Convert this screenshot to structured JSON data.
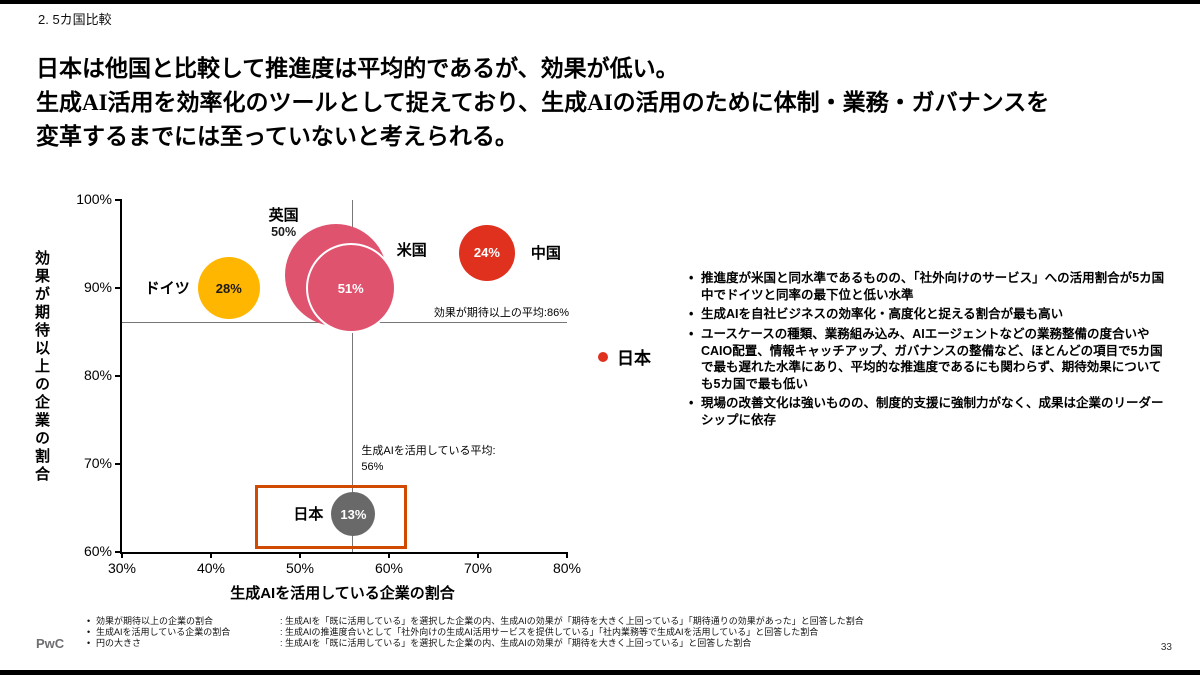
{
  "page": {
    "section_label": "2. 5カ国比較",
    "title_lines": [
      "日本は他国と比較して推進度は平均的であるが、効果が低い。",
      "生成AI活用を効率化のツールとして捉えており、生成AIの活用のために体制・業務・ガバナンスを",
      "変革するまでには至っていないと考えられる。"
    ],
    "footer_logo": "PwC",
    "page_number": "33"
  },
  "chart_data": {
    "type": "scatter",
    "xlabel": "生成AIを活用している企業の割合",
    "ylabel": "効果が期待以上の企業の割合",
    "xlim": [
      30,
      80
    ],
    "ylim": [
      60,
      100
    ],
    "x_ticks": [
      30,
      40,
      50,
      60,
      70,
      80
    ],
    "y_ticks": [
      60,
      70,
      80,
      90,
      100
    ],
    "tick_suffix": "%",
    "grid": false,
    "highlight_color": "#D04A02",
    "avg_lines": {
      "x": {
        "value": 56,
        "label": "生成AIを活用している平均:\n56%"
      },
      "y": {
        "value": 86,
        "label": "効果が期待以上の平均:86%"
      }
    },
    "legend": {
      "label": "日本",
      "color": "#E0301E",
      "position": "right"
    },
    "bubbles": [
      {
        "id": "germany",
        "name": "ドイツ",
        "x": 42,
        "y": 90,
        "pct": "28%",
        "r": 31,
        "color": "#FFB600",
        "pct_color": "#1a1a1a",
        "label_pos": "left"
      },
      {
        "id": "uk",
        "name": "英国",
        "x": 54,
        "y": 91.5,
        "pct": "50%",
        "r": 51,
        "color": "#E0536E",
        "pct_color": "#1a1a1a",
        "label_pos": "above",
        "pct_outside": true
      },
      {
        "id": "us",
        "name": "米国",
        "x": 55.7,
        "y": 90,
        "pct": "51%",
        "r": 45,
        "color": "#E0536E",
        "pct_color": "#ffffff",
        "label_pos": "topright",
        "outline": true
      },
      {
        "id": "china",
        "name": "中国",
        "x": 71,
        "y": 94,
        "pct": "24%",
        "r": 28,
        "color": "#E0301E",
        "pct_color": "#ffffff",
        "label_pos": "right"
      },
      {
        "id": "japan",
        "name": "日本",
        "x": 56,
        "y": 64.3,
        "pct": "13%",
        "r": 22,
        "color": "#696969",
        "pct_color": "#ffffff",
        "label_pos": "left",
        "highlight": true
      }
    ]
  },
  "insights": {
    "bullets": [
      "推進度が米国と同水準であるものの、「社外向けのサービス」への活用割合が5カ国中でドイツと同率の最下位と低い水準",
      "生成AIを自社ビジネスの効率化・高度化と捉える割合が最も高い",
      "ユースケースの種類、業務組み込み、AIエージェントなどの業務整備の度合いやCAIO配置、情報キャッチアップ、ガバナンスの整備など、ほとんどの項目で5カ国で最も遅れた水準にあり、平均的な推進度であるにも関わらず、期待効果についても5カ国で最も低い",
      "現場の改善文化は強いものの、制度的支援に強制力がなく、成果は企業のリーダーシップに依存"
    ]
  },
  "footnotes": [
    {
      "term": "効果が期待以上の企業の割合",
      "definition": ": 生成AIを「既に活用している」を選択した企業の内、生成AIの効果が「期待を大きく上回っている」「期待通りの効果があった」と回答した割合"
    },
    {
      "term": "生成AIを活用している企業の割合",
      "definition": ": 生成AIの推進度合いとして「社外向けの生成AI活用サービスを提供している」「社内業務等で生成AIを活用している」と回答した割合"
    },
    {
      "term": "円の大きさ",
      "definition": ": 生成AIを「既に活用している」を選択した企業の内、生成AIの効果が「期待を大きく上回っている」と回答した割合"
    }
  ]
}
